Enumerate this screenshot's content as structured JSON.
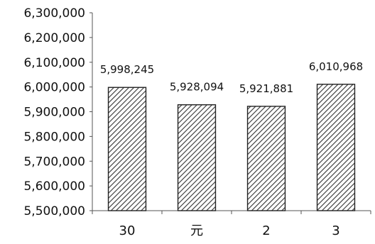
{
  "chart_data": {
    "type": "bar",
    "categories": [
      "30",
      "元",
      "2",
      "3"
    ],
    "values": [
      5998245,
      5928094,
      5921881,
      6010968
    ],
    "data_labels": [
      "5,998,245",
      "5,928,094",
      "5,921,881",
      "6,010,968"
    ],
    "ylim": [
      5500000,
      6300000
    ],
    "yticks": [
      5500000,
      5600000,
      5700000,
      5800000,
      5900000,
      6000000,
      6100000,
      6200000,
      6300000
    ],
    "ytick_labels": [
      "5,500,000",
      "5,600,000",
      "5,700,000",
      "5,800,000",
      "5,900,000",
      "6,000,000",
      "6,100,000",
      "6,200,000",
      "6,300,000"
    ],
    "title": "",
    "xlabel": "",
    "ylabel": "",
    "grid": false,
    "legend": "none",
    "bar_fill": "hatched",
    "colors": {
      "bar_stroke": "#222222",
      "hatch": "#333333",
      "axis": "#555555"
    }
  }
}
